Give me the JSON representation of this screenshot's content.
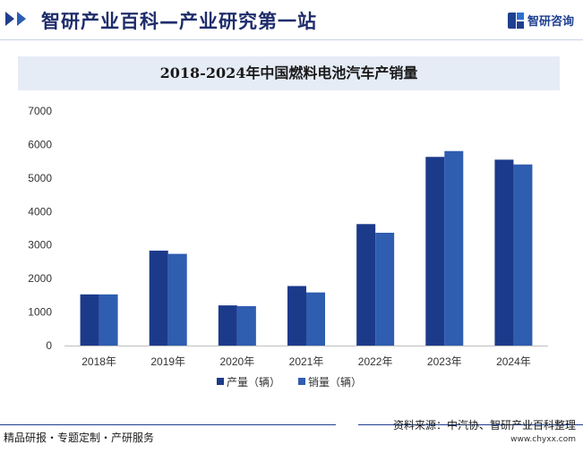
{
  "header": {
    "site_title": "智研产业百科—产业研究第一站",
    "brand_name": "智研咨询"
  },
  "footer": {
    "left_text": "精品研报・专题定制・产研服务",
    "source_text": "资料来源：中汽协、智研产业百科整理",
    "url_text": "www.chyxx.com"
  },
  "colors": {
    "series1": "#1c3a8a",
    "series2": "#2f5db0"
  },
  "chart_data": {
    "type": "bar",
    "title": "2018-2024年中国燃料电池汽车产销量",
    "categories": [
      "2018年",
      "2019年",
      "2020年",
      "2021年",
      "2022年",
      "2023年",
      "2024年"
    ],
    "series": [
      {
        "name": "产量（辆）",
        "values": [
          1527,
          2833,
          1199,
          1777,
          3626,
          5631,
          5548
        ]
      },
      {
        "name": "销量（辆）",
        "values": [
          1527,
          2737,
          1177,
          1586,
          3367,
          5805,
          5405
        ]
      }
    ],
    "ylim": [
      0,
      7000
    ],
    "yticks": [
      "0",
      "1000",
      "2000",
      "3000",
      "4000",
      "5000",
      "6000",
      "7000"
    ],
    "grid": false,
    "legend": "bottom-center",
    "xlabel": "",
    "ylabel": ""
  }
}
